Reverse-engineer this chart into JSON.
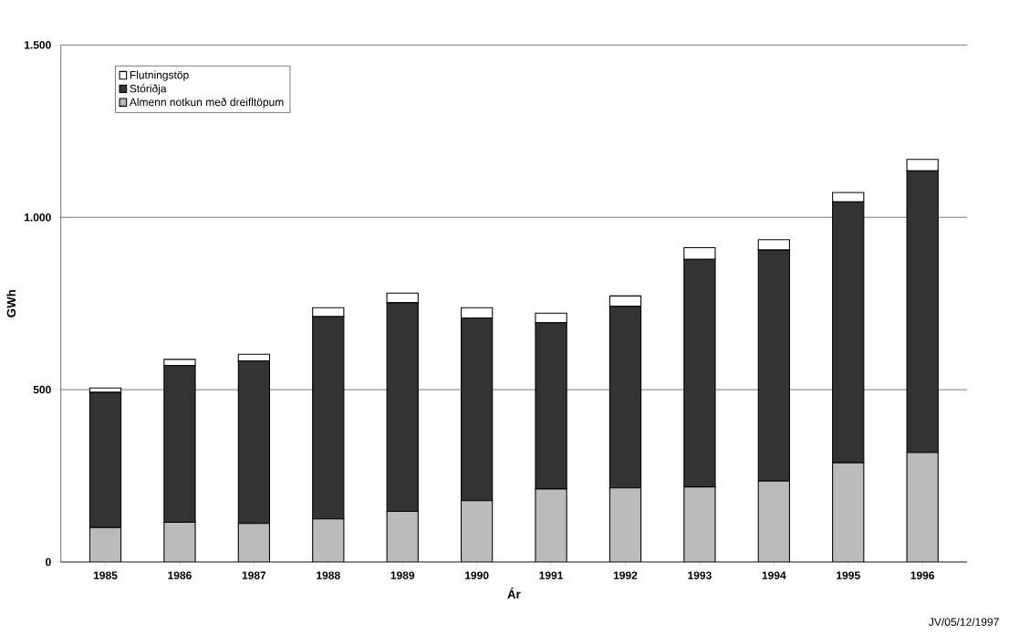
{
  "chart_data": {
    "type": "bar",
    "stacked": true,
    "xlabel": "Ár",
    "ylabel": "GWh",
    "categories": [
      "1985",
      "1986",
      "1987",
      "1988",
      "1989",
      "1990",
      "1991",
      "1992",
      "1993",
      "1994",
      "1995",
      "1996"
    ],
    "series": [
      {
        "name": "Almenn notkun með dreifltöpum",
        "color": "#bbbbbb",
        "values": [
          100,
          115,
          112,
          125,
          147,
          178,
          212,
          215,
          218,
          235,
          288,
          318
        ]
      },
      {
        "name": "Stóriðja",
        "color": "#333333",
        "values": [
          392,
          455,
          471,
          587,
          605,
          530,
          482,
          527,
          660,
          670,
          757,
          817
        ]
      },
      {
        "name": "Flutningstöp",
        "color": "#ffffff",
        "values": [
          13,
          18,
          20,
          26,
          28,
          30,
          28,
          30,
          34,
          30,
          27,
          33
        ]
      }
    ],
    "ylim": [
      0,
      1500
    ],
    "yticks": [
      0,
      500,
      {
        "value": 1000,
        "label": "1.000"
      },
      {
        "value": 1500,
        "label": "1.500"
      }
    ],
    "grid": "y",
    "legend": "top left",
    "annotations": [
      "JV/05/12/1997"
    ]
  }
}
